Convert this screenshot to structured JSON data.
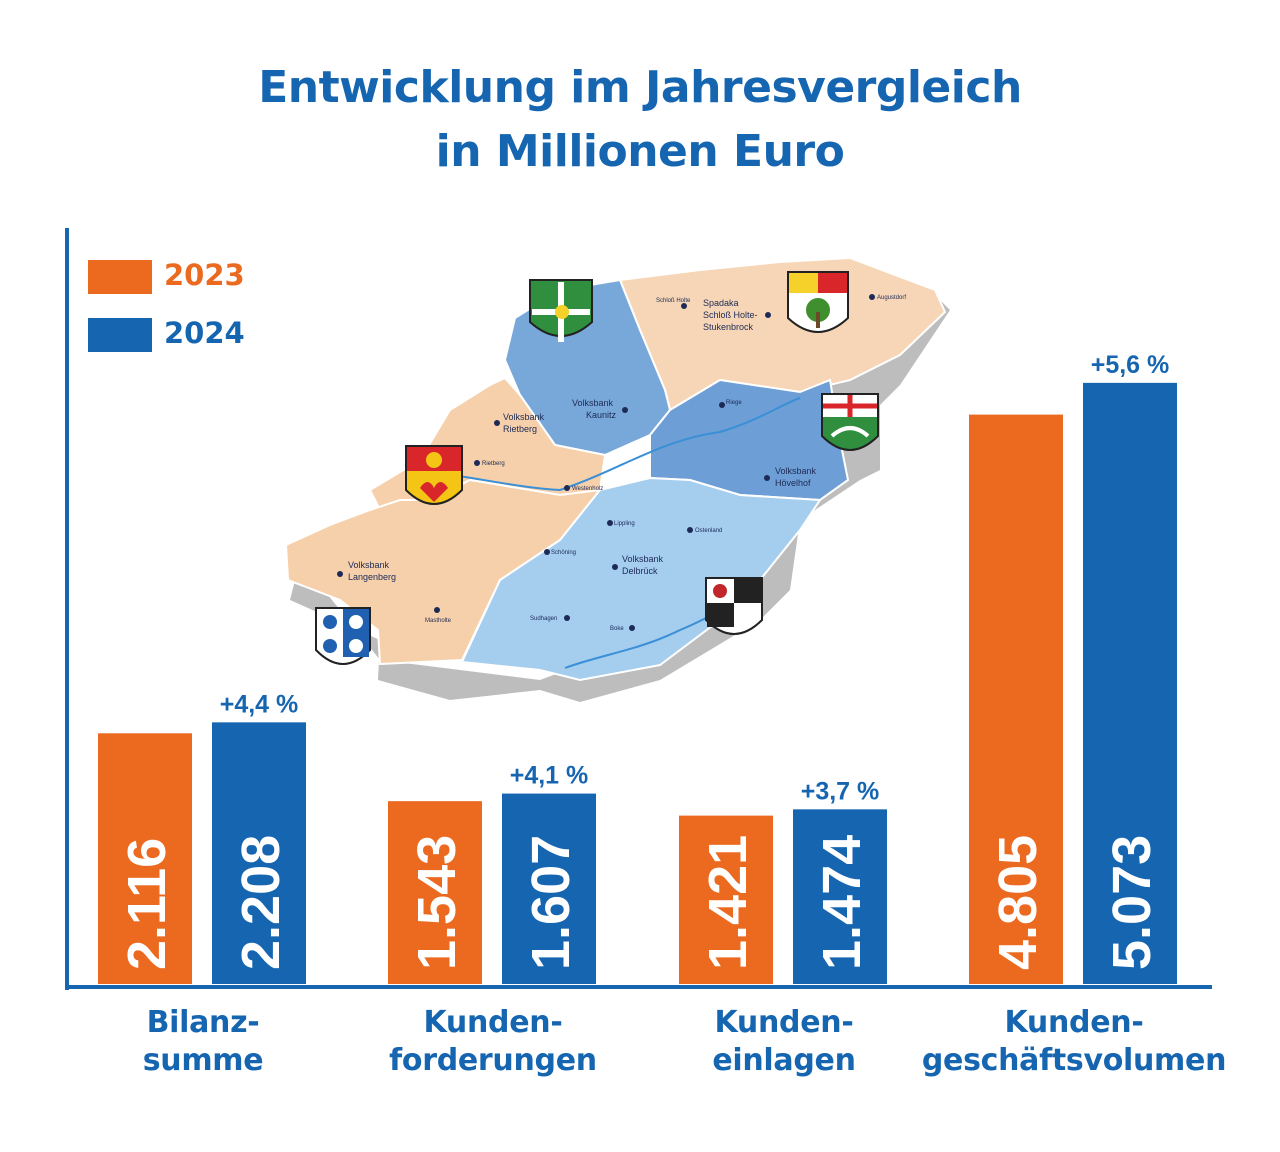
{
  "title_line1": "Entwicklung im Jahresvergleich",
  "title_line2": "in Millionen Euro",
  "colors": {
    "orange": "#ec6a1f",
    "blue": "#1565b1"
  },
  "chart_data": {
    "type": "bar",
    "title": "Entwicklung im Jahresvergleich in Millionen Euro",
    "categories": [
      [
        "Bilanz-",
        "summe"
      ],
      [
        "Kunden-",
        "forderungen"
      ],
      [
        "Kunden-",
        "einlagen"
      ],
      [
        "Kunden-",
        "geschäftsvolumen"
      ]
    ],
    "series": [
      {
        "name": "2023",
        "color": "#ec6a1f",
        "values": [
          2116,
          1543,
          1421,
          4805
        ],
        "labels": [
          "2.116",
          "1.543",
          "1.421",
          "4.805"
        ]
      },
      {
        "name": "2024",
        "color": "#1565b1",
        "values": [
          2208,
          1607,
          1474,
          5073
        ],
        "labels": [
          "2.208",
          "1.607",
          "1.474",
          "5.073"
        ]
      }
    ],
    "changes": [
      "+4,4 %",
      "+4,1 %",
      "+3,7 %",
      "+5,6 %"
    ],
    "legend_position": "top-left",
    "grid": false
  },
  "map": {
    "regions": [
      {
        "name": "Volksbank Rietberg",
        "lines": [
          "Volksbank",
          "Rietberg"
        ]
      },
      {
        "name": "Volksbank Kaunitz",
        "lines": [
          "Volksbank",
          "Kaunitz"
        ]
      },
      {
        "name": "Spadaka Schloß Holte-Stukenbrock",
        "lines": [
          "Spadaka",
          "Schloß Holte-",
          "Stukenbrock"
        ]
      },
      {
        "name": "Volksbank Hövelhof",
        "lines": [
          "Volksbank",
          "Hövelhof"
        ]
      },
      {
        "name": "Volksbank Langenberg",
        "lines": [
          "Volksbank",
          "Langenberg"
        ]
      },
      {
        "name": "Volksbank Delbrück",
        "lines": [
          "Volksbank",
          "Delbrück"
        ]
      }
    ],
    "places": [
      "Schloß Holte",
      "Augustdorf",
      "Riege",
      "Rietberg",
      "Westenholz",
      "Lippling",
      "Ostenland",
      "Schöning",
      "Mastholte",
      "Sudhagen",
      "Boke"
    ]
  }
}
